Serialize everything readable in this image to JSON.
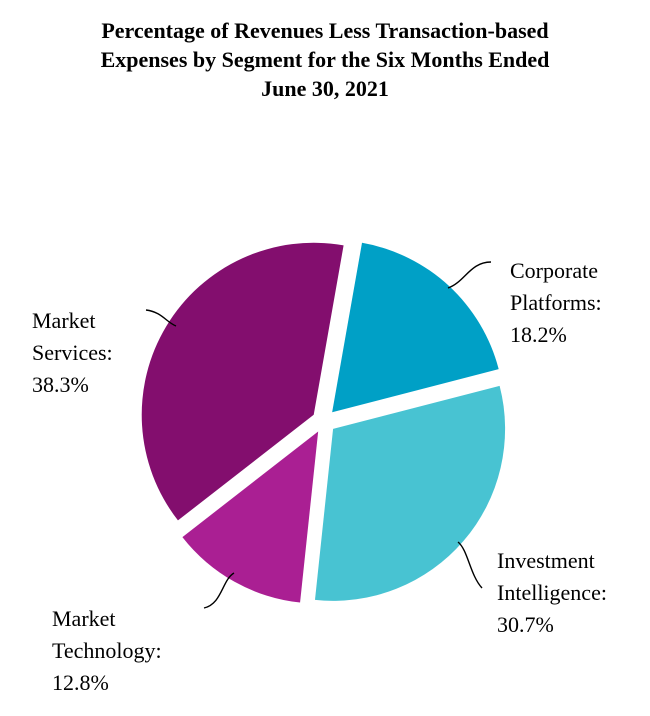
{
  "chart_data": {
    "type": "pie",
    "title_lines": [
      "Percentage of Revenues Less Transaction-based",
      "Expenses by Segment for the Six Months Ended",
      "June 30, 2021"
    ],
    "slices": [
      {
        "label_lines": [
          "Corporate",
          "Platforms:",
          "18.2%"
        ],
        "value": 18.2,
        "color": "#00A0C6"
      },
      {
        "label_lines": [
          "Investment",
          "Intelligence:",
          "30.7%"
        ],
        "value": 30.7,
        "color": "#48C3D2"
      },
      {
        "label_lines": [
          "Market",
          "Technology:",
          "12.8%"
        ],
        "value": 12.8,
        "color": "#AA1F93"
      },
      {
        "label_lines": [
          "Market",
          "Services:",
          "38.3%"
        ],
        "value": 38.3,
        "color": "#830E6E"
      }
    ]
  }
}
